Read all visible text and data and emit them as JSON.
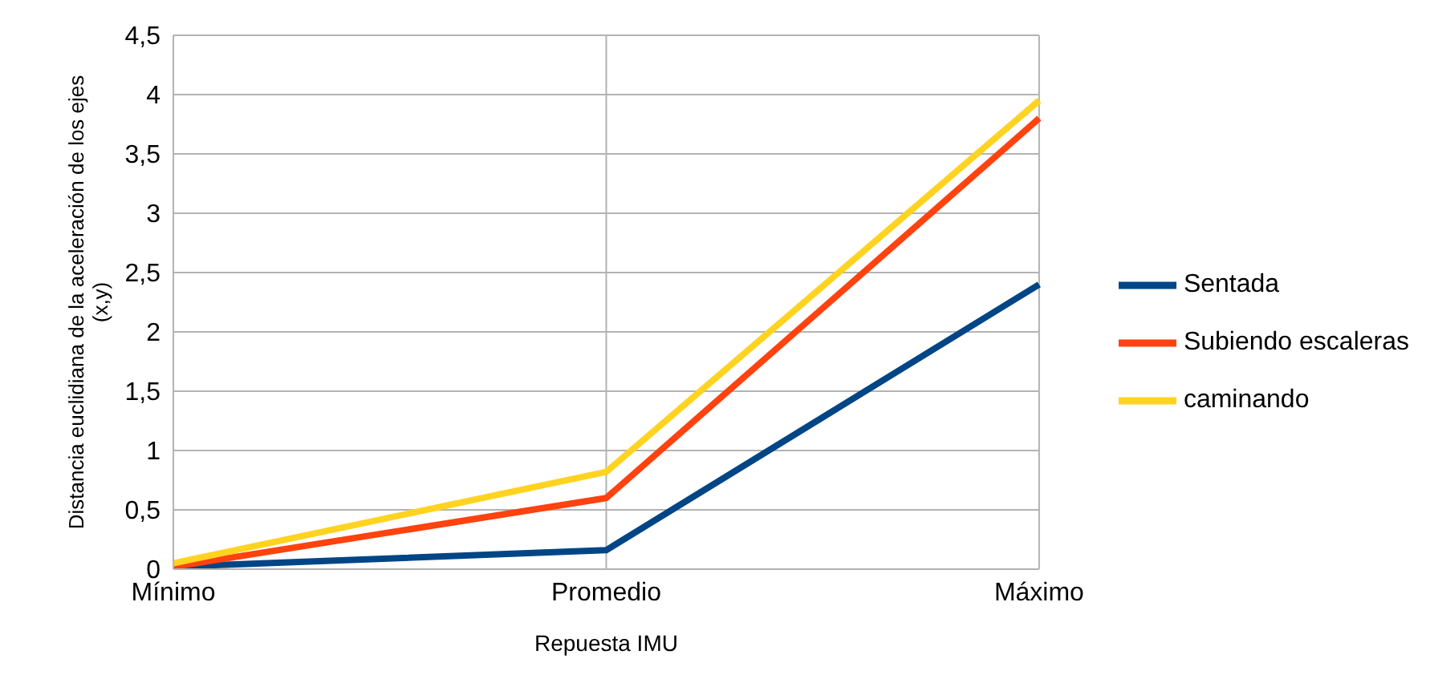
{
  "chart_data": {
    "type": "line",
    "xlabel": "Repuesta IMU",
    "ylabel": "Distancia euclidiana de la aceleración de los ejes (x,y)",
    "categories": [
      "Mínimo",
      "Promedio",
      "Máximo"
    ],
    "series": [
      {
        "name": "Sentada",
        "color": "#004586",
        "values": [
          0.02,
          0.16,
          2.4
        ]
      },
      {
        "name": "Subiendo escaleras",
        "color": "#ff420e",
        "values": [
          0.02,
          0.6,
          3.8
        ]
      },
      {
        "name": "caminando",
        "color": "#ffd320",
        "values": [
          0.05,
          0.82,
          3.95
        ]
      }
    ],
    "ylim": [
      0,
      4.5
    ],
    "yticks": [
      0,
      {
        "value": 0.5,
        "label": "0,5"
      },
      1,
      {
        "value": 1.5,
        "label": "1,5"
      },
      2,
      {
        "value": 2.5,
        "label": "2,5"
      },
      3,
      {
        "value": 3.5,
        "label": "3,5"
      },
      4,
      {
        "value": 4.5,
        "label": "4,5"
      }
    ],
    "grid": true,
    "legend": "right",
    "marker": "none",
    "line_style": "solid"
  }
}
